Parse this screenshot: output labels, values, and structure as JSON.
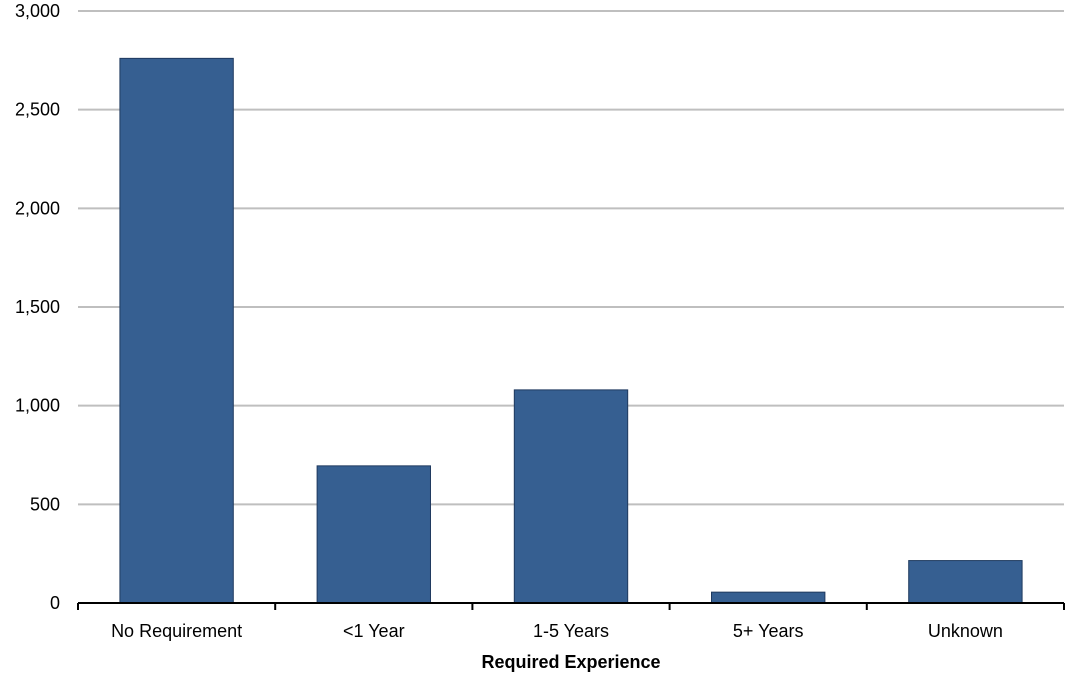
{
  "chart_data": {
    "type": "bar",
    "title": "",
    "xlabel": "Required Experience",
    "ylabel": "",
    "categories": [
      "No Requirement",
      "<1 Year",
      "1-5 Years",
      "5+ Years",
      "Unknown"
    ],
    "values": [
      2760,
      695,
      1080,
      55,
      215
    ],
    "ylim": [
      0,
      3000
    ],
    "yticks": [
      0,
      500,
      1000,
      1500,
      2000,
      2500,
      3000
    ],
    "ytick_labels": [
      "0",
      "500",
      "1,000",
      "1,500",
      "2,000",
      "2,500",
      "3,000"
    ],
    "grid": true,
    "legend": "none",
    "colors": {
      "bar_fill": "#365F91",
      "bar_stroke": "#1F3A5F",
      "grid": "#BFBFBF",
      "axis": "#000000"
    }
  }
}
